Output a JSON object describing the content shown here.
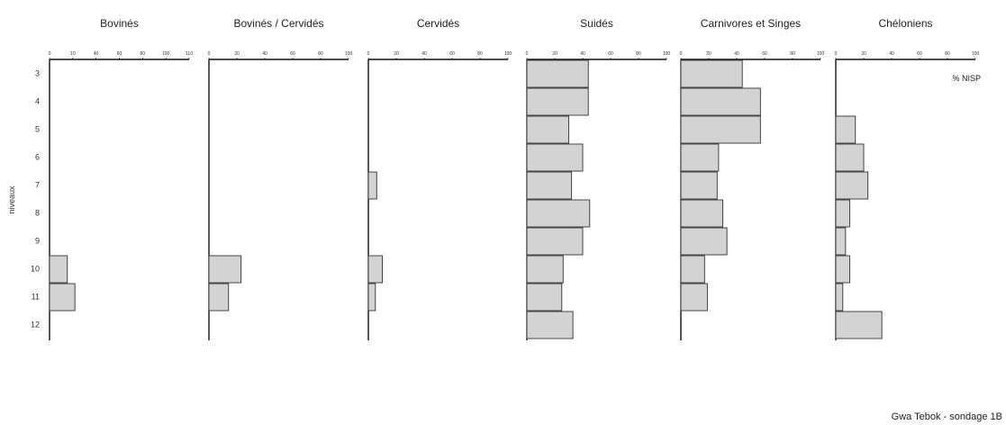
{
  "chart_data": {
    "type": "bar",
    "orientation": "horizontal",
    "y_title": "niveaux",
    "unit_label": "% NISP",
    "caption": "Gwa Tebok - sondage 1B",
    "colors": {
      "bar_fill": "#d3d3d3",
      "bar_stroke": "#444444",
      "axis": "#111111",
      "text": "#222222"
    },
    "levels": [
      "3",
      "4",
      "5",
      "6",
      "7",
      "8",
      "9",
      "10",
      "11",
      "12"
    ],
    "panels": [
      {
        "title": "Bovinés",
        "xlim": [
          0,
          110
        ],
        "ticks": [
          "0",
          "10",
          "40",
          "60",
          "80",
          "100",
          "110"
        ],
        "values": [
          0,
          0,
          0,
          0,
          0,
          0,
          0,
          14,
          20,
          0
        ]
      },
      {
        "title": "Bovinés / Cervidés",
        "xlim": [
          0,
          100
        ],
        "ticks": [
          "0",
          "20",
          "40",
          "60",
          "80",
          "100"
        ],
        "values": [
          0,
          0,
          0,
          0,
          0,
          0,
          0,
          23,
          14,
          0
        ]
      },
      {
        "title": "Cervidés",
        "xlim": [
          0,
          100
        ],
        "ticks": [
          "0",
          "20",
          "40",
          "60",
          "80",
          "100"
        ],
        "values": [
          0,
          0,
          0,
          0,
          6,
          0,
          0,
          10,
          5,
          0
        ]
      },
      {
        "title": "Suidés",
        "xlim": [
          0,
          100
        ],
        "ticks": [
          "0",
          "20",
          "40",
          "60",
          "80",
          "100"
        ],
        "values": [
          44,
          44,
          30,
          40,
          32,
          45,
          40,
          26,
          25,
          33
        ]
      },
      {
        "title": "Carnivores et Singes",
        "xlim": [
          0,
          100
        ],
        "ticks": [
          "0",
          "20",
          "40",
          "60",
          "80",
          "100"
        ],
        "values": [
          44,
          57,
          57,
          27,
          26,
          30,
          33,
          17,
          19,
          0
        ]
      },
      {
        "title": "Chéloniens",
        "xlim": [
          0,
          100
        ],
        "ticks": [
          "0",
          "20",
          "40",
          "60",
          "80",
          "100"
        ],
        "values": [
          0,
          0,
          14,
          20,
          23,
          10,
          7,
          10,
          5,
          33
        ]
      }
    ]
  }
}
